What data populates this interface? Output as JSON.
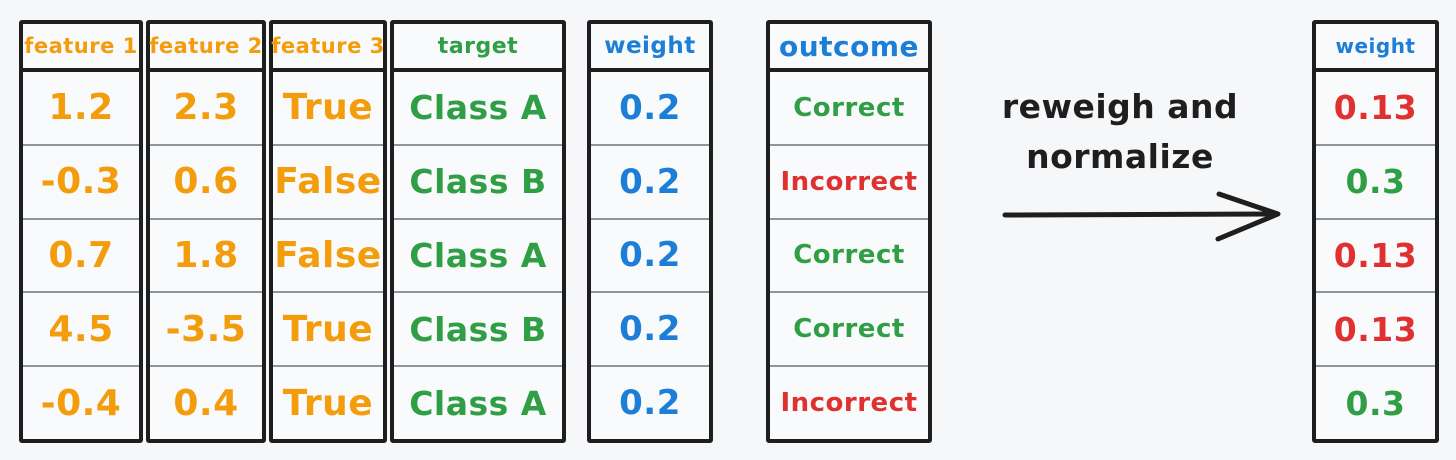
{
  "palette": {
    "orange": "#f39c0c",
    "green": "#2f9e44",
    "blue": "#1c7ed6",
    "red": "#e03131",
    "ink": "#1e1e1e"
  },
  "annotation": {
    "line1": "reweigh and",
    "line2": "normalize",
    "arrow_icon": "right-arrow"
  },
  "tables": [
    {
      "id": "feature-1",
      "header": {
        "text": "feature 1",
        "color": "orange"
      },
      "cells": [
        {
          "text": "1.2",
          "color": "orange"
        },
        {
          "text": "-0.3",
          "color": "orange"
        },
        {
          "text": "0.7",
          "color": "orange"
        },
        {
          "text": "4.5",
          "color": "orange"
        },
        {
          "text": "-0.4",
          "color": "orange"
        }
      ]
    },
    {
      "id": "feature-2",
      "header": {
        "text": "feature 2",
        "color": "orange"
      },
      "cells": [
        {
          "text": "2.3",
          "color": "orange"
        },
        {
          "text": "0.6",
          "color": "orange"
        },
        {
          "text": "1.8",
          "color": "orange"
        },
        {
          "text": "-3.5",
          "color": "orange"
        },
        {
          "text": "0.4",
          "color": "orange"
        }
      ]
    },
    {
      "id": "feature-3",
      "header": {
        "text": "feature 3",
        "color": "orange"
      },
      "cells": [
        {
          "text": "True",
          "color": "orange"
        },
        {
          "text": "False",
          "color": "orange"
        },
        {
          "text": "False",
          "color": "orange"
        },
        {
          "text": "True",
          "color": "orange"
        },
        {
          "text": "True",
          "color": "orange"
        }
      ]
    },
    {
      "id": "target",
      "header": {
        "text": "target",
        "color": "green"
      },
      "cells": [
        {
          "text": "Class A",
          "color": "green"
        },
        {
          "text": "Class B",
          "color": "green"
        },
        {
          "text": "Class A",
          "color": "green"
        },
        {
          "text": "Class B",
          "color": "green"
        },
        {
          "text": "Class A",
          "color": "green"
        }
      ]
    },
    {
      "id": "weight-before",
      "header": {
        "text": "weight",
        "color": "blue"
      },
      "cells": [
        {
          "text": "0.2",
          "color": "blue"
        },
        {
          "text": "0.2",
          "color": "blue"
        },
        {
          "text": "0.2",
          "color": "blue"
        },
        {
          "text": "0.2",
          "color": "blue"
        },
        {
          "text": "0.2",
          "color": "blue"
        }
      ]
    },
    {
      "id": "outcome",
      "header": {
        "text": "outcome",
        "color": "blue"
      },
      "cells": [
        {
          "text": "Correct",
          "color": "green"
        },
        {
          "text": "Incorrect",
          "color": "red"
        },
        {
          "text": "Correct",
          "color": "green"
        },
        {
          "text": "Correct",
          "color": "green"
        },
        {
          "text": "Incorrect",
          "color": "red"
        }
      ]
    },
    {
      "id": "weight-after",
      "header": {
        "text": "weight",
        "color": "blue"
      },
      "cells": [
        {
          "text": "0.13",
          "color": "red"
        },
        {
          "text": "0.3",
          "color": "green"
        },
        {
          "text": "0.13",
          "color": "red"
        },
        {
          "text": "0.13",
          "color": "red"
        },
        {
          "text": "0.3",
          "color": "green"
        }
      ]
    }
  ]
}
